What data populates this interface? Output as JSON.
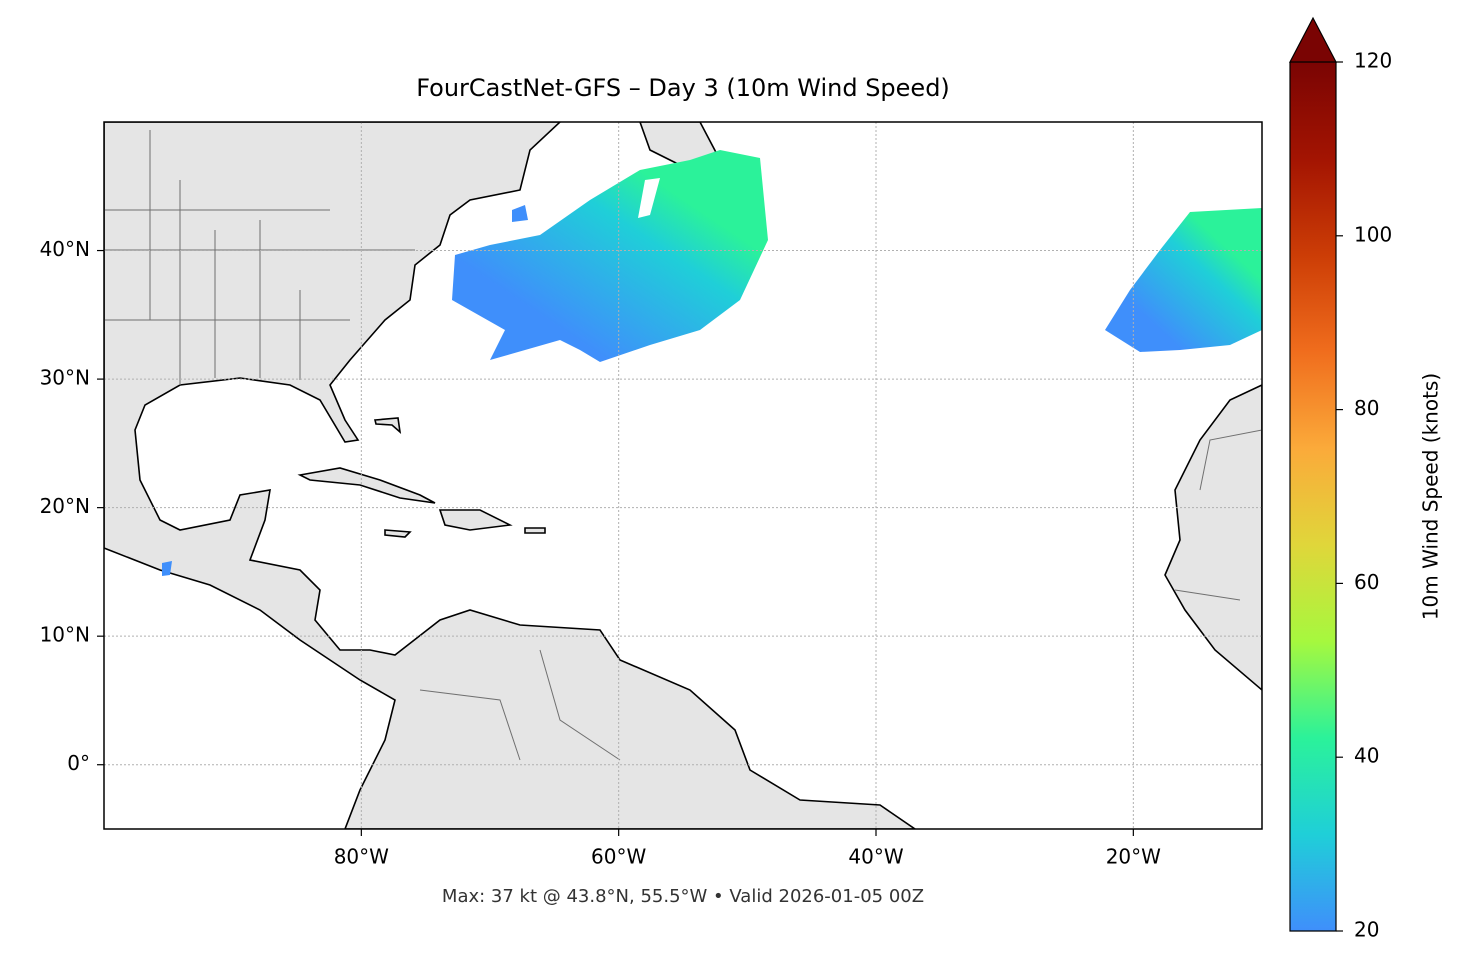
{
  "chart_data": {
    "type": "map",
    "title": "FourCastNet-GFS – Day 3 (10m Wind Speed)",
    "annotation": "Max: 37 kt @ 43.8°N, 55.5°W • Valid 2026-01-05 00Z",
    "xlim": [
      -100,
      -10
    ],
    "ylim": [
      -5,
      50
    ],
    "xticks": [
      {
        "value": -80,
        "label": "80°W"
      },
      {
        "value": -60,
        "label": "60°W"
      },
      {
        "value": -40,
        "label": "40°W"
      },
      {
        "value": -20,
        "label": "20°W"
      }
    ],
    "yticks": [
      {
        "value": 0,
        "label": "0°"
      },
      {
        "value": 10,
        "label": "10°N"
      },
      {
        "value": 20,
        "label": "20°N"
      },
      {
        "value": 30,
        "label": "30°N"
      },
      {
        "value": 40,
        "label": "40°N"
      }
    ],
    "grid": true,
    "colorbar": {
      "label": "10m Wind Speed (knots)",
      "clim": [
        20,
        120
      ],
      "ticks": [
        20,
        40,
        60,
        80,
        100,
        120
      ],
      "extend": "max",
      "colormap": [
        "#3f8ffb",
        "#1fcfd8",
        "#2bf29a",
        "#a6f83e",
        "#e0d63a",
        "#fbaa3a",
        "#f06d1d",
        "#cc3d06",
        "#a31402",
        "#7a0403"
      ]
    }
  }
}
